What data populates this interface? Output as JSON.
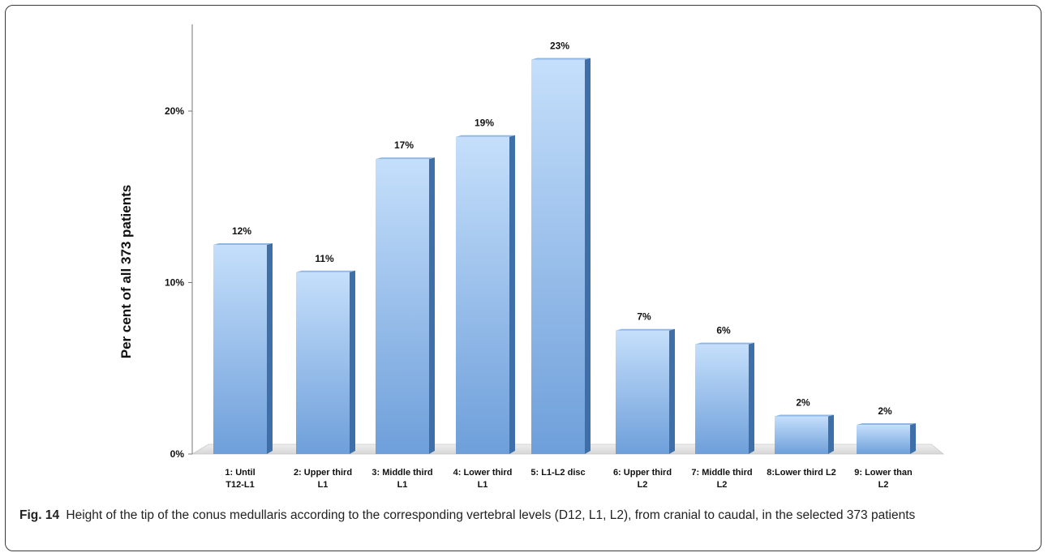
{
  "chart_data": {
    "type": "bar",
    "ylabel": "Per cent of all 373 patients",
    "xlabel": "",
    "ylim": [
      0,
      25
    ],
    "yticks": [
      0,
      10,
      20
    ],
    "ytick_labels": [
      "0%",
      "10%",
      "20%"
    ],
    "categories": [
      [
        "1: Until",
        "T12-L1"
      ],
      [
        "2: Upper third",
        "L1"
      ],
      [
        "3: Middle third",
        "L1"
      ],
      [
        "4: Lower third",
        "L1"
      ],
      [
        "5: L1-L2 disc"
      ],
      [
        "6: Upper third",
        "L2"
      ],
      [
        "7: Middle third",
        "L2"
      ],
      [
        "8:Lower third L2"
      ],
      [
        "9: Lower than",
        "L2"
      ]
    ],
    "values": [
      12.2,
      10.6,
      17.2,
      18.5,
      23,
      7.2,
      6.4,
      2.2,
      1.7
    ],
    "data_labels": [
      "12%",
      "11%",
      "17%",
      "19%",
      "23%",
      "7%",
      "6%",
      "2%",
      "2%"
    ],
    "grid": false,
    "colors": {
      "bar_top": "#c5dffb",
      "bar_bottom": "#6e9fda",
      "bar_side": "#3f6fa9",
      "bar_cap": "#8fb7e6",
      "floor": "#e4e4e4"
    }
  },
  "caption": {
    "label": "Fig. 14",
    "text": "Height of the tip of the conus medullaris according to the corresponding vertebral levels (D12, L1, L2), from cranial to caudal, in the selected 373 patients"
  }
}
